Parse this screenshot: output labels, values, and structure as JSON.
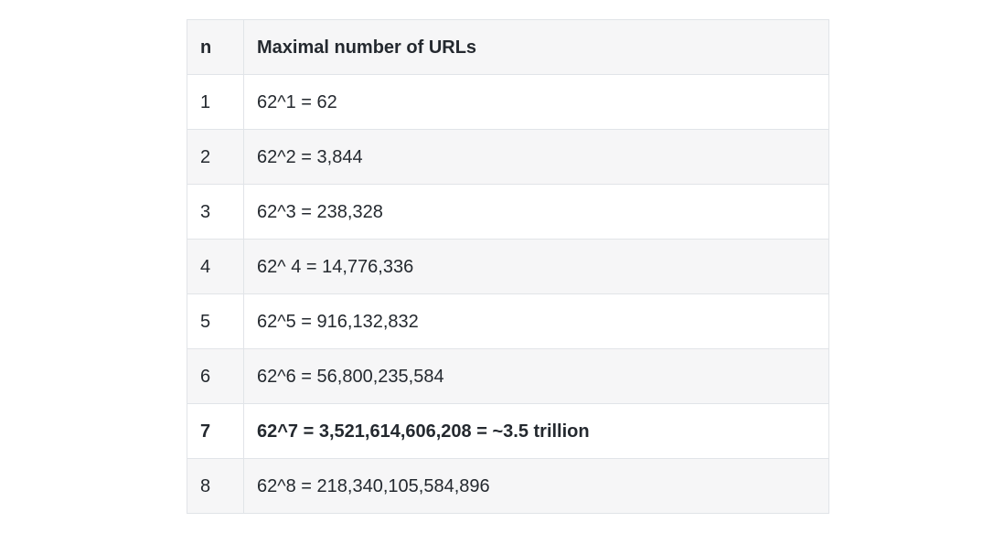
{
  "document": {
    "intro_text": "",
    "table": {
      "headers": {
        "n": "n",
        "max_urls": "Maximal number of URLs"
      },
      "rows": [
        {
          "n": "1",
          "value": "62^1 = 62"
        },
        {
          "n": "2",
          "value": "62^2 = 3,844"
        },
        {
          "n": "3",
          "value": "62^3 = 238,328"
        },
        {
          "n": "4",
          "value": "62^ 4 = 14,776,336"
        },
        {
          "n": "5",
          "value": "62^5 = 916,132,832"
        },
        {
          "n": "6",
          "value": "62^6 = 56,800,235,584"
        },
        {
          "n": "7",
          "value": "62^7 = 3,521,614,606,208 = ~3.5 trillion"
        },
        {
          "n": "8",
          "value": "62^8 = 218,340,105,584,896"
        }
      ]
    }
  }
}
